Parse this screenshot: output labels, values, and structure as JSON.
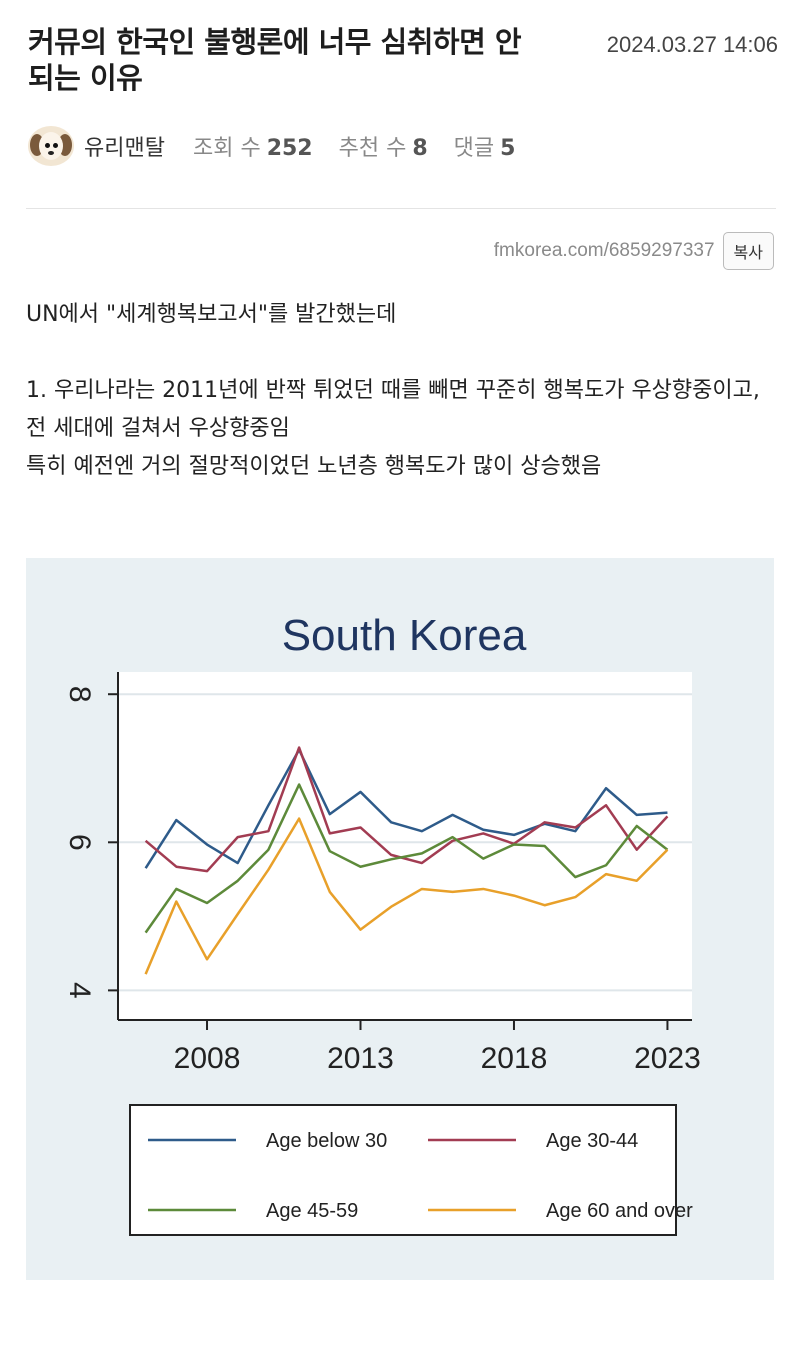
{
  "post": {
    "title": "커뮤의 한국인 불행론에 너무 심취하면 안 되는 이유",
    "date": "2024.03.27 14:06",
    "author": "유리맨탈",
    "views_label": "조회 수",
    "views": "252",
    "likes_label": "추천 수",
    "likes": "8",
    "comments_label": "댓글",
    "comments": "5",
    "url": "fmkorea.com/6859297337",
    "copy_label": "복사"
  },
  "body": {
    "line1": "UN에서 \"세계행복보고서\"를 발간했는데",
    "line2": "1. 우리나라는 2011년에 반짝 튀었던 때를 빼면 꾸준히 행복도가 우상향중이고, 전 세대에 걸쳐서 우상향중임",
    "line3": "특히 예전엔 거의 절망적이었던 노년층 행복도가 많이 상승했음"
  },
  "chart_data": {
    "type": "line",
    "title": "South Korea",
    "x": [
      2006,
      2007,
      2008,
      2009,
      2010,
      2011,
      2012,
      2013,
      2014,
      2015,
      2016,
      2017,
      2018,
      2019,
      2020,
      2021,
      2022,
      2023
    ],
    "xticks": [
      2008,
      2013,
      2018,
      2023
    ],
    "yticks": [
      4,
      6,
      8
    ],
    "ylim": [
      3.6,
      8.3
    ],
    "xlim": [
      2005.1,
      2023.8
    ],
    "grid": true,
    "legend_position": "bottom",
    "series": [
      {
        "name": "Age below 30",
        "color": "#2e5b8a",
        "values": [
          5.65,
          6.3,
          5.97,
          5.72,
          6.5,
          7.25,
          6.38,
          6.68,
          6.27,
          6.15,
          6.37,
          6.17,
          6.1,
          6.25,
          6.15,
          6.73,
          6.37,
          6.4
        ]
      },
      {
        "name": "Age 30-44",
        "color": "#a23c52",
        "values": [
          6.02,
          5.67,
          5.61,
          6.07,
          6.15,
          7.28,
          6.12,
          6.2,
          5.83,
          5.72,
          6.02,
          6.12,
          5.98,
          6.27,
          6.2,
          6.5,
          5.9,
          6.35
        ]
      },
      {
        "name": "Age 45-59",
        "color": "#5d8a3a",
        "values": [
          4.78,
          5.37,
          5.18,
          5.48,
          5.9,
          6.78,
          5.88,
          5.67,
          5.77,
          5.85,
          6.07,
          5.78,
          5.97,
          5.95,
          5.53,
          5.69,
          6.22,
          5.9
        ]
      },
      {
        "name": "Age 60 and over",
        "color": "#e8a02a",
        "values": [
          4.22,
          5.2,
          4.42,
          5.03,
          5.63,
          6.32,
          5.33,
          4.82,
          5.13,
          5.37,
          5.33,
          5.37,
          5.28,
          5.15,
          5.26,
          5.57,
          5.48,
          5.9
        ]
      }
    ]
  }
}
